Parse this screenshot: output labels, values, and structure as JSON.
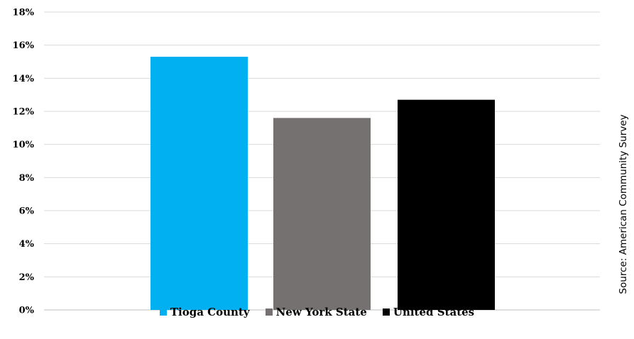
{
  "chart_data": {
    "type": "bar",
    "categories": [
      "Tioga County",
      "New York State",
      "United States"
    ],
    "values": [
      15.3,
      11.6,
      12.7
    ],
    "colors": [
      "#00B0F0",
      "#767171",
      "#000000"
    ],
    "yticks": [
      "0%",
      "2%",
      "4%",
      "6%",
      "8%",
      "10%",
      "12%",
      "14%",
      "16%",
      "18%"
    ],
    "ylim": [
      0,
      18
    ],
    "grid": true,
    "legend_placement": "bottom",
    "source_note": "Source: American Community Survey"
  }
}
